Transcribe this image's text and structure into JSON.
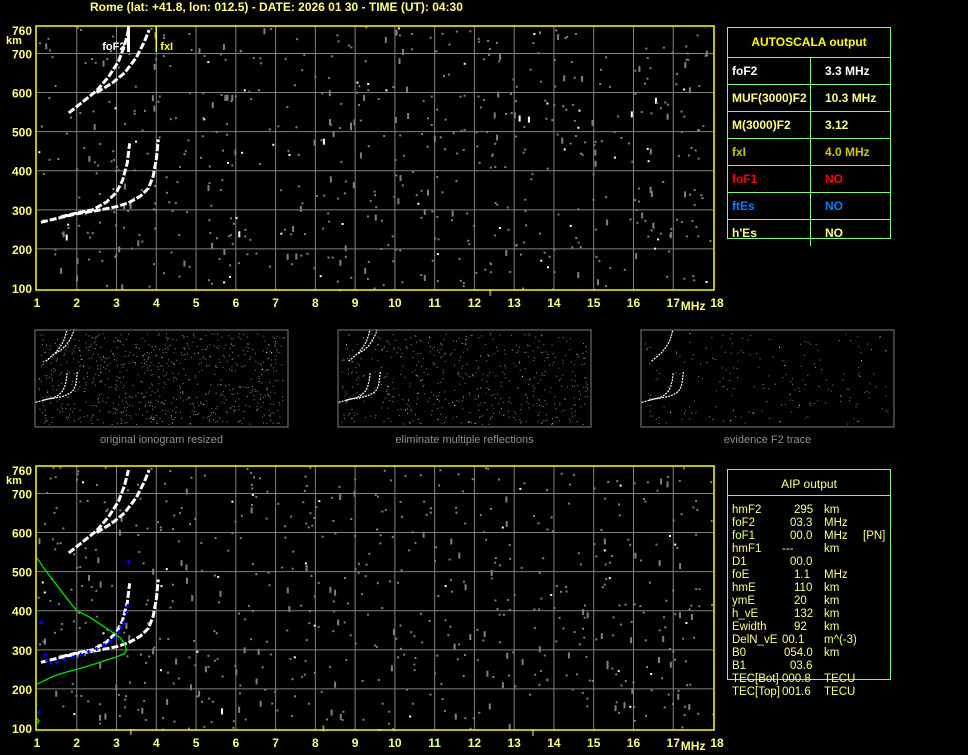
{
  "header": {
    "title": "Rome (lat: +41.8, lon: 012.5) - DATE: 2026 01 30 - TIME (UT): 04:30"
  },
  "colors": {
    "axis": "#ffff00",
    "grid": "#808080",
    "noise": "#808080",
    "trace": "#ffffff",
    "profile": "#00e000",
    "aip_points": "#0000ff",
    "table_border": "#80ff80"
  },
  "chart_data": [
    {
      "type": "scatter",
      "name_on_chart": "",
      "x_unit_label": "MHz",
      "y_unit_label": "km",
      "xlim": [
        1,
        18
      ],
      "ylim": [
        100,
        760
      ],
      "x_ticks": [
        "1",
        "2",
        "3",
        "4",
        "5",
        "6",
        "7",
        "8",
        "9",
        "10",
        "11",
        "12",
        "13",
        "14",
        "15",
        "16",
        "17",
        "18"
      ],
      "y_ticks": [
        "100",
        "200",
        "300",
        "400",
        "500",
        "600",
        "700",
        "760"
      ],
      "grid": true,
      "annotations": [
        {
          "label": "foF2",
          "x": 3.3
        },
        {
          "label": "fxI",
          "x": 4.0
        }
      ],
      "traces": [
        [
          [
            1.1,
            268
          ],
          [
            1.5,
            278
          ],
          [
            2.0,
            290
          ],
          [
            2.5,
            298
          ],
          [
            3.0,
            308
          ],
          [
            3.3,
            318
          ],
          [
            3.6,
            335
          ],
          [
            3.8,
            355
          ],
          [
            3.92,
            385
          ],
          [
            4.0,
            430
          ],
          [
            4.05,
            480
          ]
        ],
        [
          [
            1.6,
            282
          ],
          [
            2.0,
            292
          ],
          [
            2.4,
            300
          ],
          [
            2.75,
            320
          ],
          [
            3.0,
            345
          ],
          [
            3.15,
            375
          ],
          [
            3.27,
            420
          ],
          [
            3.33,
            470
          ]
        ],
        [
          [
            1.8,
            548
          ],
          [
            2.1,
            572
          ],
          [
            2.5,
            605
          ],
          [
            2.8,
            640
          ],
          [
            3.05,
            680
          ],
          [
            3.2,
            720
          ],
          [
            3.3,
            760
          ]
        ],
        [
          [
            2.5,
            600
          ],
          [
            2.9,
            625
          ],
          [
            3.2,
            650
          ],
          [
            3.5,
            690
          ],
          [
            3.7,
            730
          ],
          [
            3.82,
            760
          ]
        ]
      ]
    },
    {
      "type": "scatter",
      "x_unit_label": "MHz",
      "y_unit_label": "km",
      "xlim": [
        1,
        18
      ],
      "ylim": [
        100,
        760
      ],
      "x_ticks": [
        "1",
        "2",
        "3",
        "4",
        "5",
        "6",
        "7",
        "8",
        "9",
        "10",
        "11",
        "12",
        "13",
        "14",
        "15",
        "16",
        "17",
        "18"
      ],
      "y_ticks": [
        "100",
        "200",
        "300",
        "400",
        "500",
        "600",
        "700",
        "760"
      ],
      "grid": true,
      "profile": [
        [
          1.0,
          535
        ],
        [
          1.2,
          505
        ],
        [
          1.5,
          465
        ],
        [
          1.8,
          425
        ],
        [
          2.0,
          400
        ],
        [
          2.3,
          385
        ],
        [
          2.6,
          365
        ],
        [
          2.9,
          345
        ],
        [
          3.1,
          330
        ],
        [
          3.2,
          315
        ],
        [
          3.25,
          300
        ],
        [
          3.2,
          290
        ],
        [
          3.0,
          282
        ],
        [
          2.7,
          272
        ],
        [
          2.4,
          262
        ],
        [
          2.0,
          250
        ],
        [
          1.7,
          242
        ],
        [
          1.4,
          232
        ],
        [
          1.2,
          222
        ],
        [
          1.0,
          212
        ]
      ],
      "aip_points": [
        [
          1.2,
          288
        ],
        [
          1.25,
          272
        ],
        [
          1.35,
          265
        ],
        [
          1.5,
          268
        ],
        [
          1.7,
          275
        ],
        [
          1.9,
          280
        ],
        [
          2.1,
          288
        ],
        [
          2.3,
          295
        ],
        [
          2.5,
          302
        ],
        [
          2.7,
          312
        ],
        [
          2.85,
          322
        ],
        [
          2.95,
          330
        ],
        [
          3.05,
          345
        ],
        [
          3.12,
          358
        ],
        [
          3.18,
          370
        ],
        [
          3.25,
          395
        ],
        [
          3.28,
          412
        ],
        [
          3.3,
          525
        ],
        [
          1.1,
          370
        ],
        [
          1.05,
          140
        ]
      ]
    }
  ],
  "thumbnails": [
    {
      "label": "original ionogram resized",
      "density": 0.16
    },
    {
      "label": "eliminate multiple reflections",
      "density": 0.11
    },
    {
      "label": "evidence F2 trace",
      "density": 0.04
    }
  ],
  "autoscala": {
    "title": "AUTOSCALA output",
    "rows": [
      {
        "label": "foF2",
        "value": "3.3 MHz",
        "color": "#ffffff"
      },
      {
        "label": "MUF(3000)F2",
        "value": "10.3 MHz",
        "color": "#ffff80"
      },
      {
        "label": "M(3000)F2",
        "value": "3.12",
        "color": "#ffff80"
      },
      {
        "label": "fxI",
        "value": "4.0 MHz",
        "color": "#c8c800"
      },
      {
        "label": "foF1",
        "value": "NO",
        "color": "#ff0000"
      },
      {
        "label": "ftEs",
        "value": "NO",
        "color": "#0080ff"
      },
      {
        "label": "h'Es",
        "value": "NO",
        "color": "#ffff80"
      }
    ]
  },
  "aip": {
    "title": "AIP output",
    "rows": [
      {
        "name": "hmF2",
        "value": "295",
        "unit": "km",
        "extra": ""
      },
      {
        "name": "foF2",
        "value": "03.3",
        "unit": "MHz",
        "extra": ""
      },
      {
        "name": "foF1",
        "value": "00.0",
        "unit": "MHz",
        "extra": "[PN]"
      },
      {
        "name": "hmF1",
        "value": "---",
        "unit": "km",
        "extra": ""
      },
      {
        "name": "D1",
        "value": "00.0",
        "unit": "",
        "extra": ""
      },
      {
        "name": "foE",
        "value": "1.1",
        "unit": "MHz",
        "extra": ""
      },
      {
        "name": "hmE",
        "value": "110",
        "unit": "km",
        "extra": ""
      },
      {
        "name": "ymE",
        "value": "20",
        "unit": "km",
        "extra": ""
      },
      {
        "name": "h_vE",
        "value": "132",
        "unit": "km",
        "extra": ""
      },
      {
        "name": "Ewidth",
        "value": "92",
        "unit": "km",
        "extra": ""
      },
      {
        "name": "DelN_vE",
        "value": "00.1",
        "unit": "m^(-3)",
        "extra": ""
      },
      {
        "name": "B0",
        "value": "054.0",
        "unit": "km",
        "extra": ""
      },
      {
        "name": "B1",
        "value": "03.6",
        "unit": "",
        "extra": ""
      },
      {
        "name": "TEC[Bot]",
        "value": "000.8",
        "unit": "TECU",
        "extra": ""
      },
      {
        "name": "TEC[Top]",
        "value": "001.6",
        "unit": "TECU",
        "extra": ""
      }
    ]
  }
}
